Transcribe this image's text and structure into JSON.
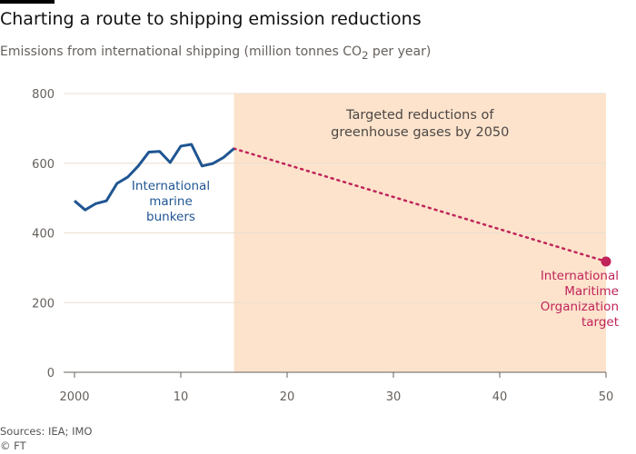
{
  "title": "Charting a route to shipping emission reductions",
  "subtitle": "Emissions from international shipping (million tonnes CO2 per year)",
  "sources": "Sources: IEA; IMO",
  "copyright": "© FT",
  "chart_data": {
    "type": "line",
    "title": "Charting a route to shipping emission reductions",
    "ylim": [
      0,
      800
    ],
    "xlim": [
      2000,
      2050
    ],
    "yticks": [
      0,
      200,
      400,
      600,
      800
    ],
    "xticks": [
      2000,
      2010,
      2020,
      2030,
      2040,
      2050
    ],
    "xtick_labels": [
      "2000",
      "10",
      "20",
      "30",
      "40",
      "50"
    ],
    "grid": "horizontal",
    "shaded_region": {
      "from": 2015,
      "to": 2050,
      "label_line1": "Targeted reductions of",
      "label_line2": "greenhouse gases by 2050",
      "color": "#fde3cc"
    },
    "series": [
      {
        "name": "International marine bunkers",
        "label_lines": [
          "International",
          "marine",
          "bunkers"
        ],
        "color": "#1f5592",
        "x": [
          2000,
          2001,
          2002,
          2003,
          2004,
          2005,
          2006,
          2007,
          2008,
          2009,
          2010,
          2011,
          2012,
          2013,
          2014,
          2015
        ],
        "y": [
          492,
          466,
          484,
          492,
          542,
          560,
          592,
          632,
          634,
          602,
          649,
          654,
          592,
          599,
          616,
          642
        ]
      },
      {
        "name": "International Maritime Organization target",
        "label_lines": [
          "International",
          "Maritime",
          "Organization",
          "target"
        ],
        "color": "#c0245a",
        "style": "dotted",
        "x": [
          2015,
          2050
        ],
        "y": [
          642,
          318
        ]
      }
    ]
  }
}
